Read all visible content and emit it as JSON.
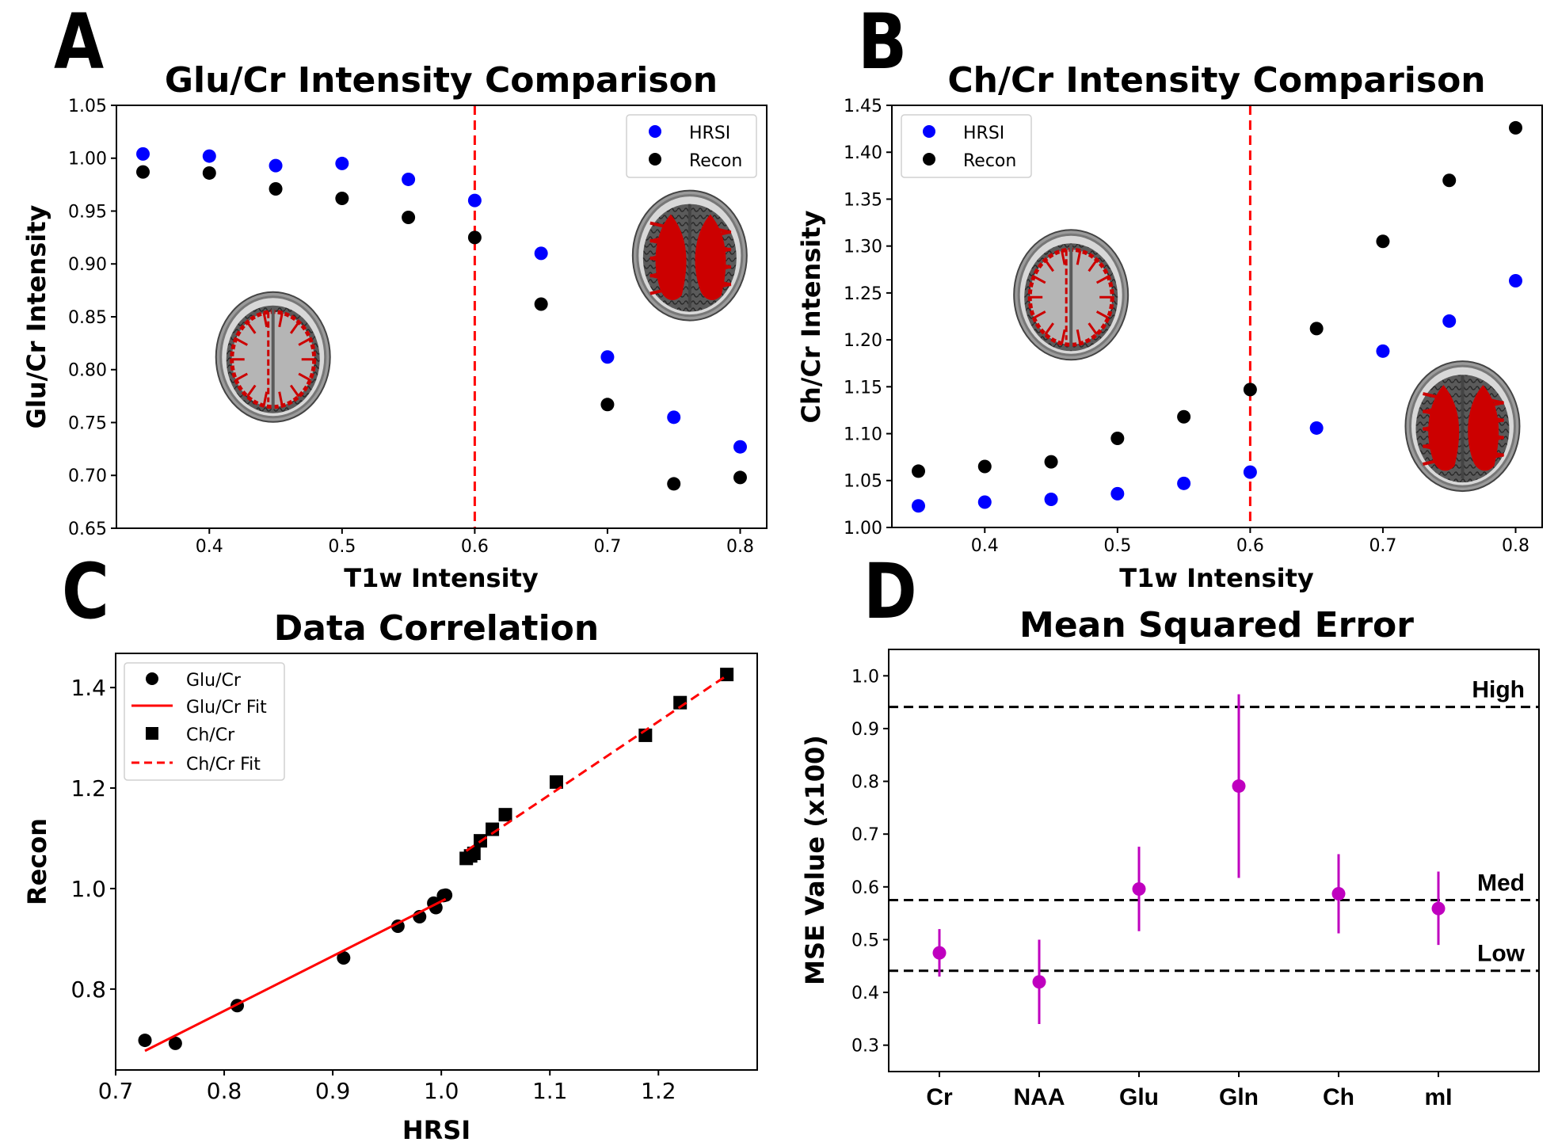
{
  "colors": {
    "hrsi": "#0000ff",
    "recon": "#000000",
    "threshold": "#ff0000",
    "fit": "#ff0000",
    "mse": "#bf00bf",
    "reference": "#000000",
    "brain_tissue": "#b5b5b5",
    "brain_red": "#cc0000"
  },
  "chart_data": [
    {
      "panel": "A",
      "type": "scatter",
      "title": "Glu/Cr Intensity Comparison",
      "xlabel": "T1w Intensity",
      "ylabel": "Glu/Cr Intensity",
      "xlim": [
        0.33,
        0.82
      ],
      "ylim": [
        0.65,
        1.05
      ],
      "xticks": [
        "0.4",
        "0.5",
        "0.6",
        "0.7",
        "0.8"
      ],
      "yticks": [
        "0.65",
        "0.70",
        "0.75",
        "0.80",
        "0.85",
        "0.90",
        "0.95",
        "1.00",
        "1.05"
      ],
      "x": [
        0.35,
        0.4,
        0.45,
        0.5,
        0.55,
        0.6,
        0.65,
        0.7,
        0.75,
        0.8
      ],
      "series": [
        {
          "name": "HRSI",
          "color_key": "hrsi",
          "values": [
            1.004,
            1.002,
            0.993,
            0.995,
            0.98,
            0.96,
            0.91,
            0.812,
            0.755,
            0.727
          ]
        },
        {
          "name": "Recon",
          "color_key": "recon",
          "values": [
            0.987,
            0.986,
            0.971,
            0.962,
            0.944,
            0.925,
            0.862,
            0.767,
            0.692,
            0.698
          ]
        }
      ],
      "threshold_x": 0.6,
      "legend": [
        "HRSI",
        "Recon"
      ],
      "legend_position": "top-right",
      "insets": [
        {
          "name": "brain-inset-gray-matter",
          "kind": "gray-matter-outline",
          "center": [
            0.448,
            0.812
          ]
        },
        {
          "name": "brain-inset-white-matter",
          "kind": "white-matter-fill",
          "center": [
            0.762,
            0.908
          ]
        }
      ],
      "grid": false
    },
    {
      "panel": "B",
      "type": "scatter",
      "title": "Ch/Cr Intensity Comparison",
      "xlabel": "T1w Intensity",
      "ylabel": "Ch/Cr Intensity",
      "xlim": [
        0.33,
        0.82
      ],
      "ylim": [
        1.0,
        1.45
      ],
      "xticks": [
        "0.4",
        "0.5",
        "0.6",
        "0.7",
        "0.8"
      ],
      "yticks": [
        "1.00",
        "1.05",
        "1.10",
        "1.15",
        "1.20",
        "1.25",
        "1.30",
        "1.35",
        "1.40",
        "1.45"
      ],
      "x": [
        0.35,
        0.4,
        0.45,
        0.5,
        0.55,
        0.6,
        0.65,
        0.7,
        0.75,
        0.8
      ],
      "series": [
        {
          "name": "HRSI",
          "color_key": "hrsi",
          "values": [
            1.023,
            1.027,
            1.03,
            1.036,
            1.047,
            1.059,
            1.106,
            1.188,
            1.22,
            1.263
          ]
        },
        {
          "name": "Recon",
          "color_key": "recon",
          "values": [
            1.06,
            1.065,
            1.07,
            1.095,
            1.118,
            1.147,
            1.212,
            1.305,
            1.37,
            1.426
          ]
        }
      ],
      "threshold_x": 0.6,
      "legend": [
        "HRSI",
        "Recon"
      ],
      "legend_position": "top-left",
      "insets": [
        {
          "name": "brain-inset-gray-matter",
          "kind": "gray-matter-outline",
          "center": [
            0.465,
            1.248
          ]
        },
        {
          "name": "brain-inset-white-matter",
          "kind": "white-matter-fill",
          "center": [
            0.76,
            1.108
          ]
        }
      ],
      "grid": false
    },
    {
      "panel": "C",
      "type": "scatter",
      "title": "Data Correlation",
      "xlabel": "HRSI",
      "ylabel": "Recon",
      "xlim": [
        0.7,
        1.291
      ],
      "ylim": [
        0.639,
        1.468
      ],
      "xticks": [
        "0.7",
        "0.8",
        "0.9",
        "1.0",
        "1.1",
        "1.2"
      ],
      "yticks": [
        "0.8",
        "1.0",
        "1.2",
        "1.4"
      ],
      "series": [
        {
          "name": "Glu/Cr",
          "marker": "circle",
          "x": [
            1.004,
            1.002,
            0.993,
            0.995,
            0.98,
            0.96,
            0.91,
            0.812,
            0.755,
            0.727
          ],
          "y": [
            0.987,
            0.986,
            0.971,
            0.962,
            0.944,
            0.925,
            0.862,
            0.767,
            0.692,
            0.698
          ]
        },
        {
          "name": "Ch/Cr",
          "marker": "square",
          "x": [
            1.023,
            1.027,
            1.03,
            1.036,
            1.047,
            1.059,
            1.106,
            1.188,
            1.22,
            1.263
          ],
          "y": [
            1.06,
            1.065,
            1.07,
            1.095,
            1.118,
            1.147,
            1.212,
            1.305,
            1.37,
            1.426
          ]
        }
      ],
      "fits": [
        {
          "name": "Glu/Cr Fit",
          "style": "solid",
          "x": [
            0.727,
            1.004
          ],
          "y": [
            0.677,
            0.979
          ]
        },
        {
          "name": "Ch/Cr Fit",
          "style": "dashed",
          "x": [
            1.023,
            1.263
          ],
          "y": [
            1.075,
            1.424
          ]
        }
      ],
      "legend": [
        "Glu/Cr",
        "Glu/Cr Fit",
        "Ch/Cr",
        "Ch/Cr Fit"
      ],
      "legend_position": "top-left",
      "grid": false
    },
    {
      "panel": "D",
      "type": "scatter",
      "title": "Mean Squared Error",
      "xlabel": "",
      "ylabel": "MSE Value (x100)",
      "categories": [
        "Cr",
        "NAA",
        "Glu",
        "Gln",
        "Ch",
        "mI"
      ],
      "values": [
        0.475,
        0.42,
        0.596,
        0.791,
        0.587,
        0.559
      ],
      "error_low": [
        0.43,
        0.34,
        0.516,
        0.617,
        0.512,
        0.49
      ],
      "error_high": [
        0.52,
        0.5,
        0.676,
        0.965,
        0.662,
        0.629
      ],
      "ylim": [
        0.25,
        1.05
      ],
      "yticks": [
        "0.3",
        "0.4",
        "0.5",
        "0.6",
        "0.7",
        "0.8",
        "0.9",
        "1.0"
      ],
      "reference_lines": [
        {
          "label": "High",
          "value": 0.941
        },
        {
          "label": "Med",
          "value": 0.575
        },
        {
          "label": "Low",
          "value": 0.441
        }
      ],
      "grid": false
    }
  ],
  "panels": [
    {
      "letter": "A"
    },
    {
      "letter": "B"
    },
    {
      "letter": "C"
    },
    {
      "letter": "D"
    }
  ]
}
